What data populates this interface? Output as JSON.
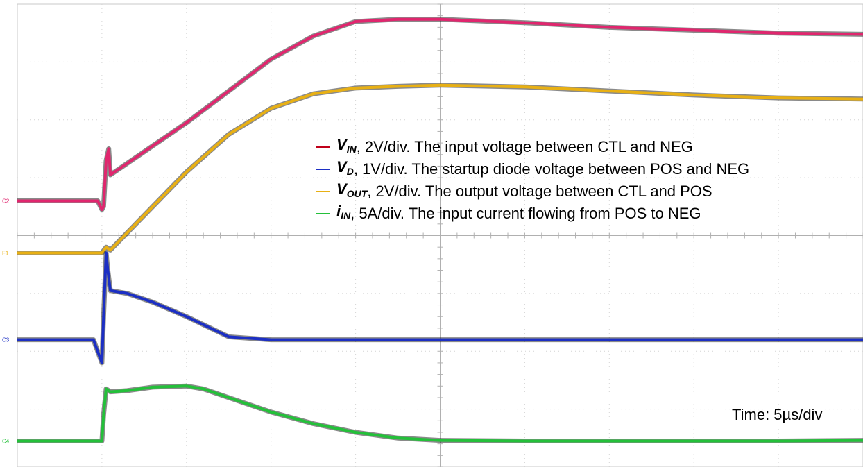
{
  "chart_data": {
    "type": "line",
    "title": "",
    "xlabel": "",
    "ylabel": "",
    "divisions": {
      "x": 10,
      "y": 8
    },
    "x_range_div": [
      0,
      10
    ],
    "y_range_div": [
      0,
      8
    ],
    "grid": true,
    "time_label": "Time: 5µs/div",
    "series": [
      {
        "name": "VIN",
        "marker": "C2",
        "color": "#e0266e",
        "x": [
          0,
          0.5,
          0.95,
          1.0,
          1.02,
          1.05,
          1.08,
          1.1,
          1.3,
          1.6,
          2.0,
          2.5,
          3.0,
          3.5,
          4.0,
          4.5,
          5.0,
          6.0,
          7.0,
          8.0,
          9.0,
          10.0
        ],
        "y": [
          4.6,
          4.6,
          4.6,
          4.45,
          4.5,
          5.3,
          5.5,
          5.05,
          5.25,
          5.55,
          5.95,
          6.5,
          7.05,
          7.45,
          7.7,
          7.74,
          7.74,
          7.68,
          7.6,
          7.55,
          7.5,
          7.48
        ]
      },
      {
        "name": "VOUT",
        "marker": "F1",
        "color": "#e8b014",
        "x": [
          0,
          0.5,
          1.0,
          1.05,
          1.1,
          1.3,
          1.6,
          2.0,
          2.5,
          3.0,
          3.5,
          4.0,
          4.5,
          5.0,
          6.0,
          7.0,
          8.0,
          9.0,
          10.0
        ],
        "y": [
          3.7,
          3.7,
          3.7,
          3.8,
          3.75,
          4.05,
          4.5,
          5.1,
          5.75,
          6.2,
          6.45,
          6.55,
          6.58,
          6.6,
          6.57,
          6.5,
          6.43,
          6.38,
          6.36
        ]
      },
      {
        "name": "VD",
        "marker": "C3",
        "color": "#1c2fc4",
        "x": [
          0,
          0.5,
          0.9,
          0.95,
          1.0,
          1.02,
          1.05,
          1.07,
          1.1,
          1.3,
          1.6,
          2.0,
          2.5,
          3.0,
          4.0,
          5.0,
          6.0,
          7.0,
          8.0,
          9.0,
          10.0
        ],
        "y": [
          2.2,
          2.2,
          2.2,
          2.0,
          1.8,
          2.6,
          3.7,
          3.4,
          3.05,
          3.0,
          2.85,
          2.6,
          2.25,
          2.2,
          2.2,
          2.2,
          2.2,
          2.2,
          2.2,
          2.2,
          2.2
        ]
      },
      {
        "name": "IIN",
        "marker": "C4",
        "color": "#24c03a",
        "x": [
          0,
          0.5,
          0.95,
          1.0,
          1.02,
          1.05,
          1.1,
          1.3,
          1.6,
          2.0,
          2.2,
          2.5,
          3.0,
          3.5,
          4.0,
          4.5,
          5.0,
          6.0,
          7.0,
          8.0,
          9.0,
          10.0
        ],
        "y": [
          0.45,
          0.45,
          0.45,
          0.45,
          0.9,
          1.35,
          1.3,
          1.32,
          1.38,
          1.4,
          1.35,
          1.2,
          0.95,
          0.75,
          0.6,
          0.5,
          0.46,
          0.45,
          0.45,
          0.45,
          0.45,
          0.46
        ]
      }
    ],
    "legend": [
      {
        "sym": "V",
        "sub": "IN",
        "text": ", 2V/div. The input voltage between CTL and NEG",
        "color": "#c0001a"
      },
      {
        "sym": "V",
        "sub": "D",
        "text": ", 1V/div. The startup diode voltage between POS and NEG",
        "color": "#1c2fc4"
      },
      {
        "sym": "V",
        "sub": "OUT",
        "text": ", 2V/div. The output voltage between CTL and POS",
        "color": "#e8b014"
      },
      {
        "sym": "i",
        "sub": "IN",
        "text": ", 5A/div. The input current flowing from POS to NEG",
        "color": "#24c03a"
      }
    ]
  }
}
